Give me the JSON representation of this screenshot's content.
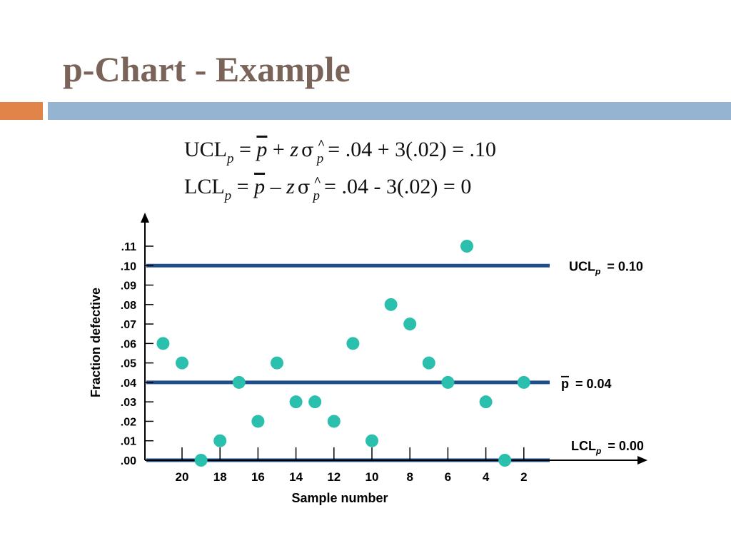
{
  "slide": {
    "title": "p-Chart - Example"
  },
  "formulas": {
    "ucl": {
      "lhs": "UCL",
      "sub": "p",
      "p": "p",
      "op": "+",
      "z": "z",
      "sigma": "σ",
      "hat": "^",
      "phat": "p",
      "rhs": "= .04 + 3(.02) = .10"
    },
    "lcl": {
      "lhs": "LCL",
      "sub": "p",
      "p": "p",
      "op": "–",
      "z": "z",
      "sigma": "σ",
      "hat": "^",
      "phat": "p",
      "rhs": "= .04 - 3(.02) = 0"
    }
  },
  "chart_data": {
    "type": "scatter",
    "title": "",
    "xlabel": "Sample number",
    "ylabel": "Fraction defective",
    "x_reversed": true,
    "xlim": [
      21.3,
      0.9
    ],
    "ylim": [
      0,
      0.11
    ],
    "x_ticks": [
      20,
      18,
      16,
      14,
      12,
      10,
      8,
      6,
      4,
      2
    ],
    "x_tick_labels": [
      "20",
      "18",
      "16",
      "14",
      "12",
      "10",
      "8",
      "6",
      "4",
      "2"
    ],
    "y_ticks": [
      0,
      0.01,
      0.02,
      0.03,
      0.04,
      0.05,
      0.06,
      0.07,
      0.08,
      0.09,
      0.1,
      0.11
    ],
    "y_tick_labels": [
      ".00",
      ".01",
      ".02",
      ".03",
      ".04",
      ".05",
      ".06",
      ".07",
      ".08",
      ".09",
      ".10",
      ".11"
    ],
    "grid": false,
    "points": {
      "x": [
        21,
        20,
        19,
        18,
        17,
        16,
        15,
        14,
        13,
        12,
        11,
        10,
        9,
        8,
        7,
        6,
        5,
        4,
        3,
        2
      ],
      "y": [
        0.06,
        0.05,
        0.0,
        0.01,
        0.04,
        0.02,
        0.05,
        0.03,
        0.03,
        0.02,
        0.06,
        0.01,
        0.08,
        0.07,
        0.05,
        0.04,
        0.11,
        0.03,
        0.0,
        0.04
      ]
    },
    "control_lines": [
      {
        "name": "ucl",
        "value": 0.1,
        "label": "UCL",
        "sub": "p",
        "value_text": "= 0.10"
      },
      {
        "name": "center",
        "value": 0.04,
        "label": "p",
        "sub": "",
        "value_text": "=  0.04"
      },
      {
        "name": "lcl",
        "value": 0.0,
        "label": "LCL",
        "sub": "p",
        "value_text": "= 0.00"
      }
    ],
    "colors": {
      "points": "#2bbfae",
      "control_lines": "#1f4e8c",
      "axes": "#000000"
    }
  }
}
